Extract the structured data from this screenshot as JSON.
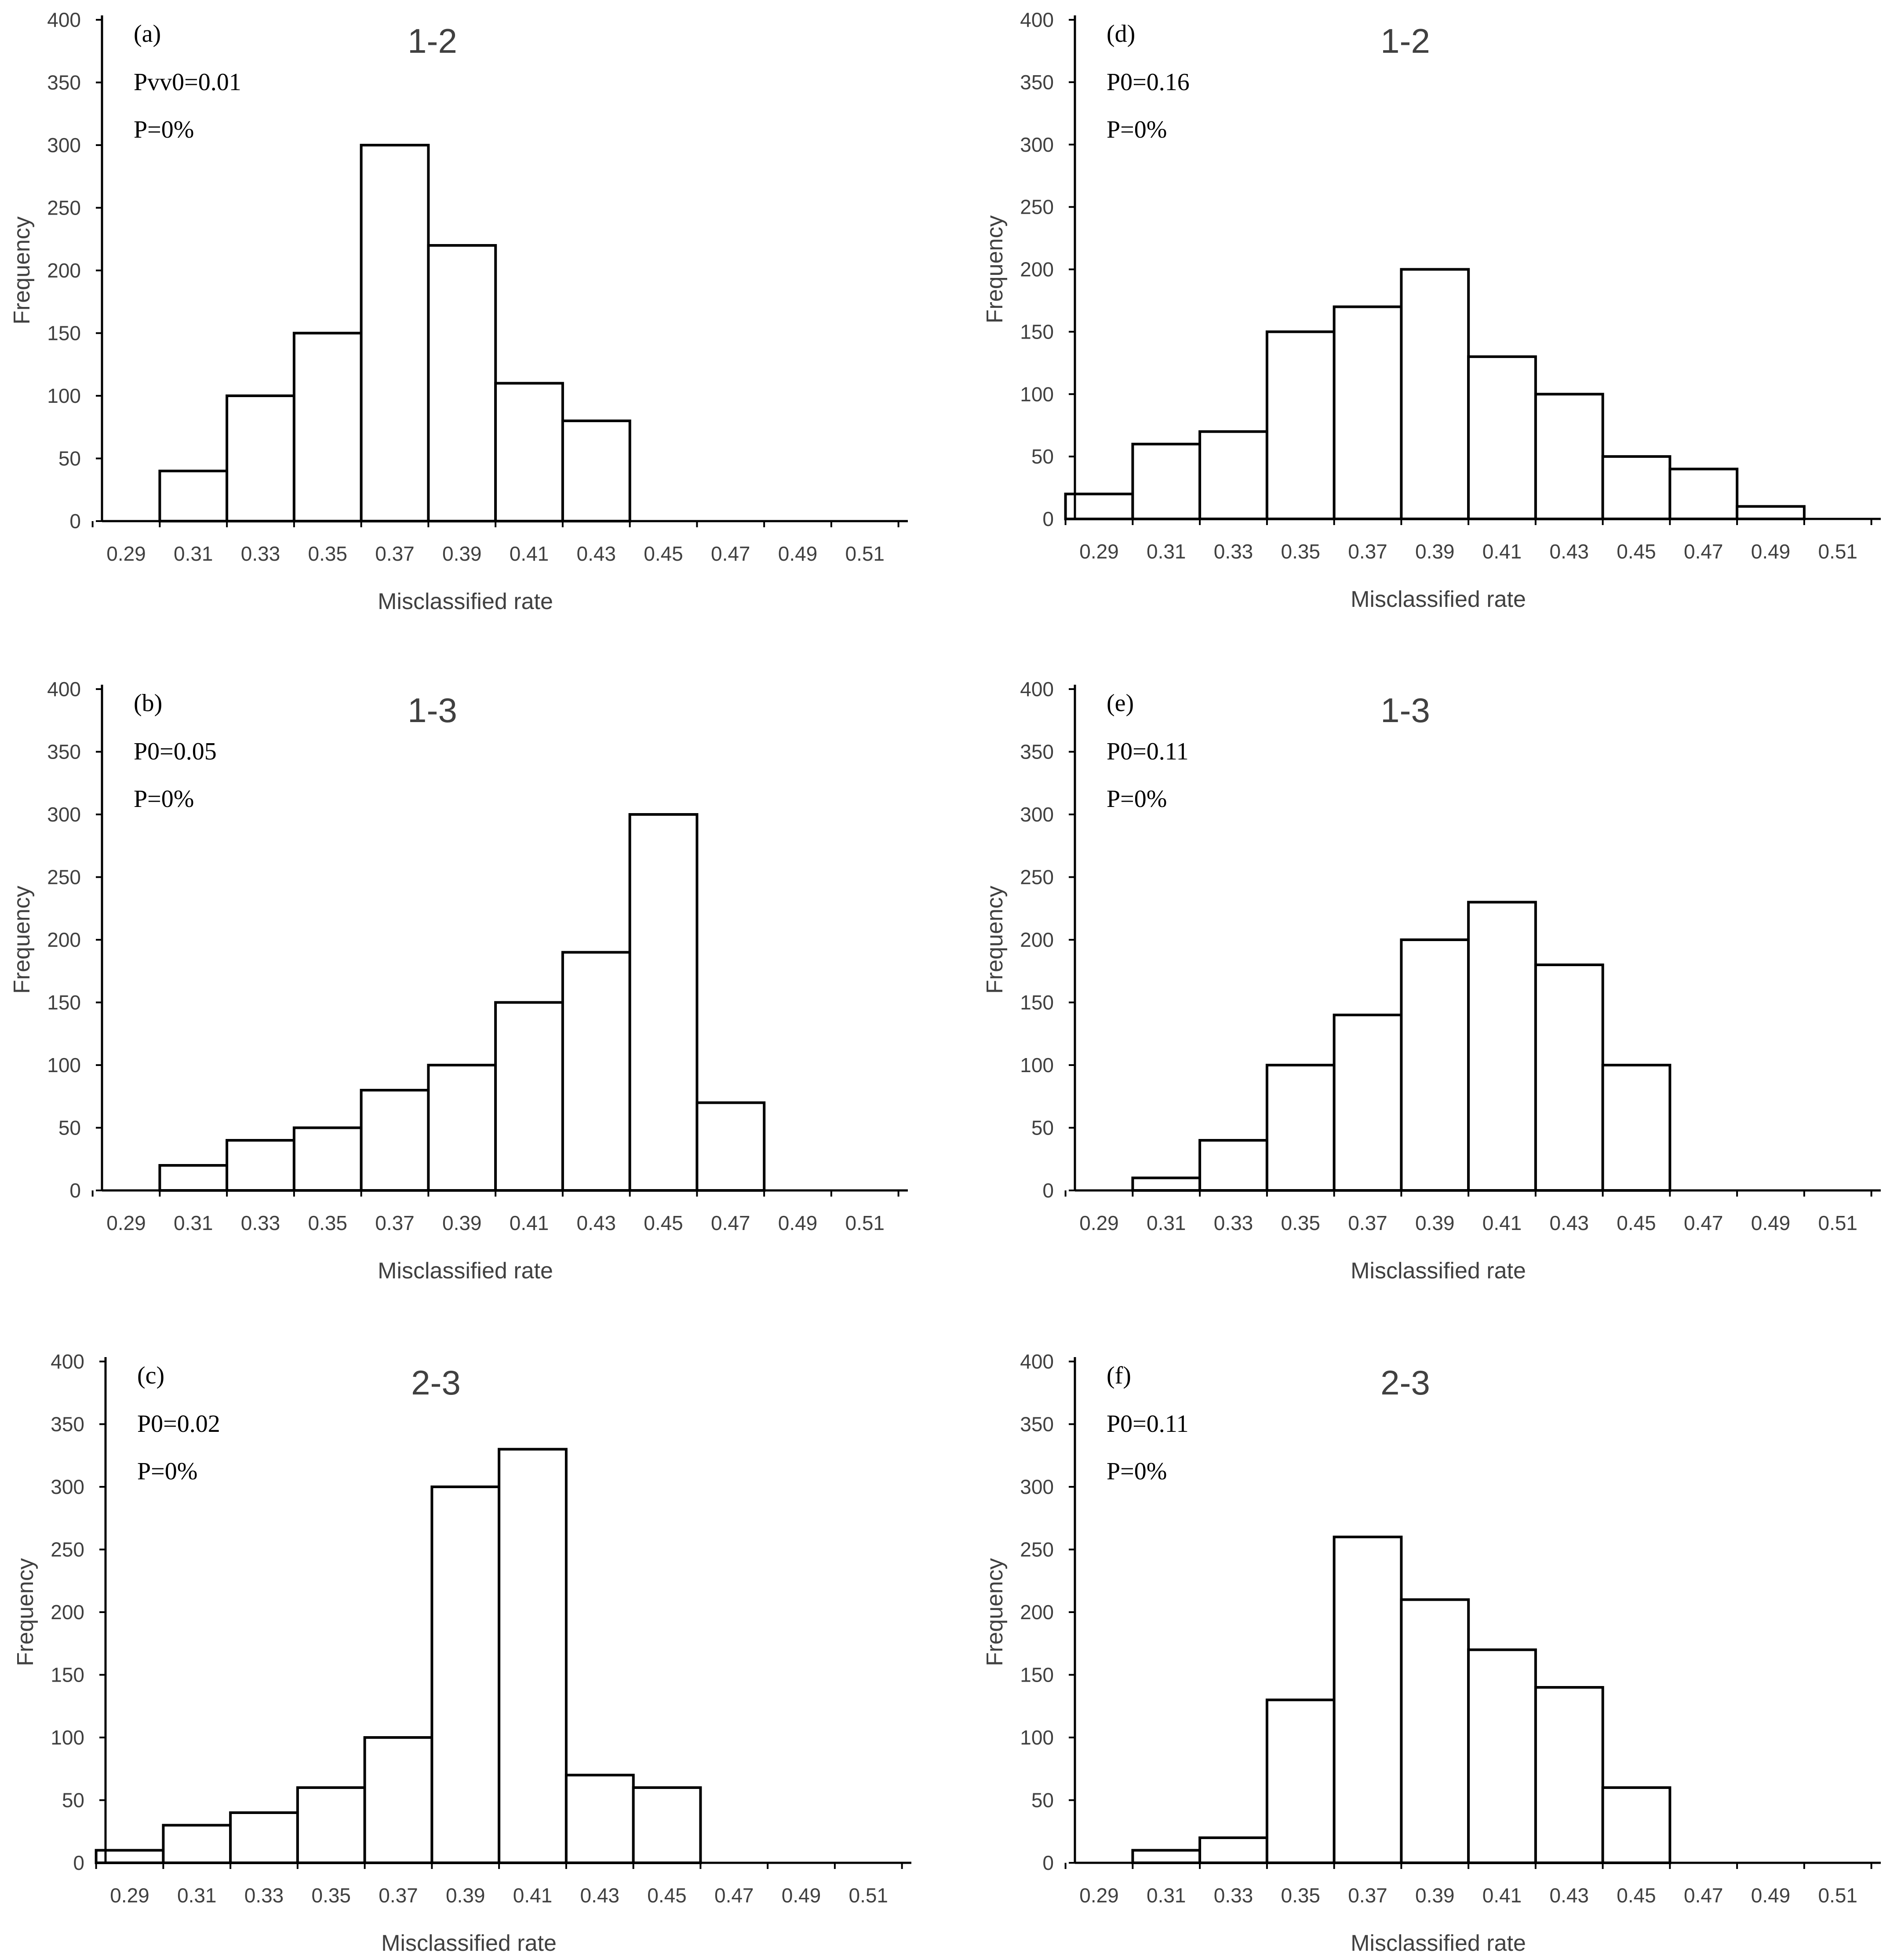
{
  "chart_data": [
    {
      "type": "bar",
      "panel_label": "(a)",
      "title": "1-2",
      "annotations": [
        "Pvv0=0.01",
        "P=0%"
      ],
      "categories": [
        "0.29",
        "0.31",
        "0.33",
        "0.35",
        "0.37",
        "0.39",
        "0.41",
        "0.43",
        "0.45",
        "0.47",
        "0.49",
        "0.51"
      ],
      "values": [
        0,
        40,
        100,
        150,
        300,
        220,
        110,
        80,
        0,
        0,
        0,
        0
      ],
      "xlabel": "Misclassified rate",
      "ylabel": "Frequency",
      "ylim": [
        0,
        400
      ],
      "yticks": [
        0,
        50,
        100,
        150,
        200,
        250,
        300,
        350,
        400
      ]
    },
    {
      "type": "bar",
      "panel_label": "(b)",
      "title": "1-3",
      "annotations": [
        "P0=0.05",
        "P=0%"
      ],
      "categories": [
        "0.29",
        "0.31",
        "0.33",
        "0.35",
        "0.37",
        "0.39",
        "0.41",
        "0.43",
        "0.45",
        "0.47",
        "0.49",
        "0.51"
      ],
      "values": [
        0,
        20,
        40,
        50,
        80,
        100,
        150,
        190,
        300,
        70,
        0,
        0
      ],
      "xlabel": "Misclassified rate",
      "ylabel": "Frequency",
      "ylim": [
        0,
        400
      ],
      "yticks": [
        0,
        50,
        100,
        150,
        200,
        250,
        300,
        350,
        400
      ]
    },
    {
      "type": "bar",
      "panel_label": "(c)",
      "title": "2-3",
      "annotations": [
        "P0=0.02",
        "P=0%"
      ],
      "categories": [
        "0.29",
        "0.31",
        "0.33",
        "0.35",
        "0.37",
        "0.39",
        "0.41",
        "0.43",
        "0.45",
        "0.47",
        "0.49",
        "0.51"
      ],
      "values": [
        10,
        30,
        40,
        60,
        100,
        300,
        330,
        70,
        60,
        0,
        0,
        0
      ],
      "xlabel": "Misclassified rate",
      "ylabel": "Frequency",
      "ylim": [
        0,
        400
      ],
      "yticks": [
        0,
        50,
        100,
        150,
        200,
        250,
        300,
        350,
        400
      ]
    },
    {
      "type": "bar",
      "panel_label": "(d)",
      "title": "1-2",
      "annotations": [
        "P0=0.16",
        "P=0%"
      ],
      "categories": [
        "0.29",
        "0.31",
        "0.33",
        "0.35",
        "0.37",
        "0.39",
        "0.41",
        "0.43",
        "0.45",
        "0.47",
        "0.49",
        "0.51"
      ],
      "values": [
        20,
        60,
        70,
        150,
        170,
        200,
        130,
        100,
        50,
        40,
        10,
        0
      ],
      "xlabel": "Misclassified rate",
      "ylabel": "Frequency",
      "ylim": [
        0,
        400
      ],
      "yticks": [
        0,
        50,
        100,
        150,
        200,
        250,
        300,
        350,
        400
      ]
    },
    {
      "type": "bar",
      "panel_label": "(e)",
      "title": "1-3",
      "annotations": [
        "P0=0.11",
        "P=0%"
      ],
      "categories": [
        "0.29",
        "0.31",
        "0.33",
        "0.35",
        "0.37",
        "0.39",
        "0.41",
        "0.43",
        "0.45",
        "0.47",
        "0.49",
        "0.51"
      ],
      "values": [
        0,
        10,
        40,
        100,
        140,
        200,
        230,
        180,
        100,
        0,
        0,
        0
      ],
      "xlabel": "Misclassified rate",
      "ylabel": "Frequency",
      "ylim": [
        0,
        400
      ],
      "yticks": [
        0,
        50,
        100,
        150,
        200,
        250,
        300,
        350,
        400
      ]
    },
    {
      "type": "bar",
      "panel_label": "(f)",
      "title": "2-3",
      "annotations": [
        "P0=0.11",
        "P=0%"
      ],
      "categories": [
        "0.29",
        "0.31",
        "0.33",
        "0.35",
        "0.37",
        "0.39",
        "0.41",
        "0.43",
        "0.45",
        "0.47",
        "0.49",
        "0.51"
      ],
      "values": [
        0,
        10,
        20,
        130,
        260,
        210,
        170,
        140,
        60,
        0,
        0,
        0
      ],
      "xlabel": "Misclassified rate",
      "ylabel": "Frequency",
      "ylim": [
        0,
        400
      ],
      "yticks": [
        0,
        50,
        100,
        150,
        200,
        250,
        300,
        350,
        400
      ]
    }
  ]
}
